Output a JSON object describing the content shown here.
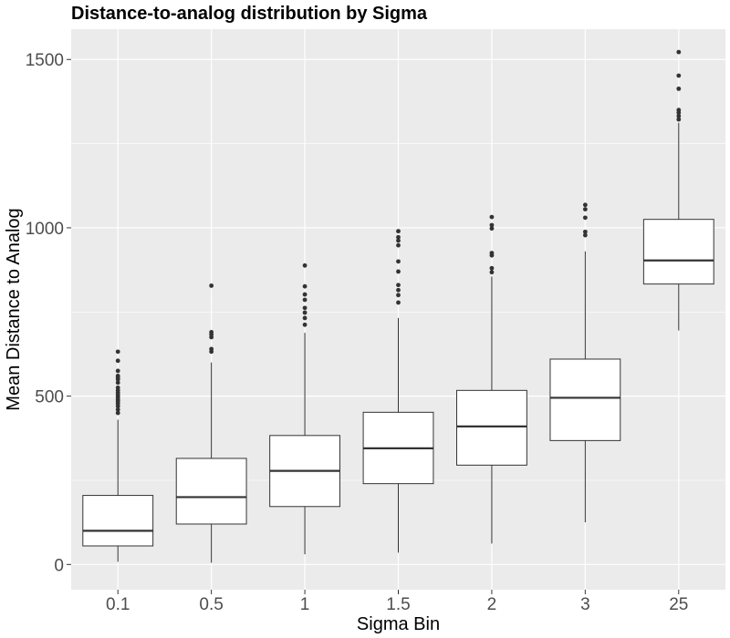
{
  "chart_data": {
    "type": "boxplot",
    "title": "Distance-to-analog distribution by Sigma",
    "xlabel": "Sigma Bin",
    "ylabel": "Mean Distance to Analog",
    "ylim": [
      -75,
      1590
    ],
    "yticks": [
      0,
      500,
      1000,
      1500
    ],
    "grid": true,
    "categories": [
      "0.1",
      "0.5",
      "1",
      "1.5",
      "2",
      "3",
      "25"
    ],
    "boxes": [
      {
        "category": "0.1",
        "whisker_low": 8,
        "q1": 55,
        "median": 100,
        "q3": 205,
        "whisker_high": 430,
        "outliers": [
          450,
          460,
          470,
          478,
          485,
          490,
          497,
          503,
          510,
          517,
          525,
          540,
          550,
          555,
          560,
          575,
          605,
          632
        ]
      },
      {
        "category": "0.5",
        "whisker_low": 5,
        "q1": 120,
        "median": 200,
        "q3": 315,
        "whisker_high": 600,
        "outliers": [
          632,
          640,
          675,
          683,
          690,
          828
        ]
      },
      {
        "category": "1",
        "whisker_low": 30,
        "q1": 172,
        "median": 278,
        "q3": 383,
        "whisker_high": 688,
        "outliers": [
          712,
          732,
          748,
          762,
          786,
          802,
          826,
          888
        ]
      },
      {
        "category": "1.5",
        "whisker_low": 35,
        "q1": 240,
        "median": 345,
        "q3": 452,
        "whisker_high": 732,
        "outliers": [
          778,
          800,
          815,
          830,
          870,
          900,
          948,
          962,
          972,
          990
        ]
      },
      {
        "category": "2",
        "whisker_low": 62,
        "q1": 295,
        "median": 410,
        "q3": 517,
        "whisker_high": 855,
        "outliers": [
          868,
          880,
          918,
          925,
          998,
          1008,
          1032
        ]
      },
      {
        "category": "3",
        "whisker_low": 125,
        "q1": 368,
        "median": 495,
        "q3": 610,
        "whisker_high": 930,
        "outliers": [
          978,
          988,
          1030,
          1055,
          1068
        ]
      },
      {
        "category": "25",
        "whisker_low": 695,
        "q1": 833,
        "median": 903,
        "q3": 1025,
        "whisker_high": 1312,
        "outliers": [
          1322,
          1332,
          1342,
          1350,
          1413,
          1452,
          1522
        ]
      }
    ],
    "colors": {
      "panel": "#ebebeb",
      "grid": "#ffffff",
      "box_fill": "#ffffff",
      "box_line": "#333333",
      "outlier": "#333333",
      "tick": "#333333"
    }
  }
}
